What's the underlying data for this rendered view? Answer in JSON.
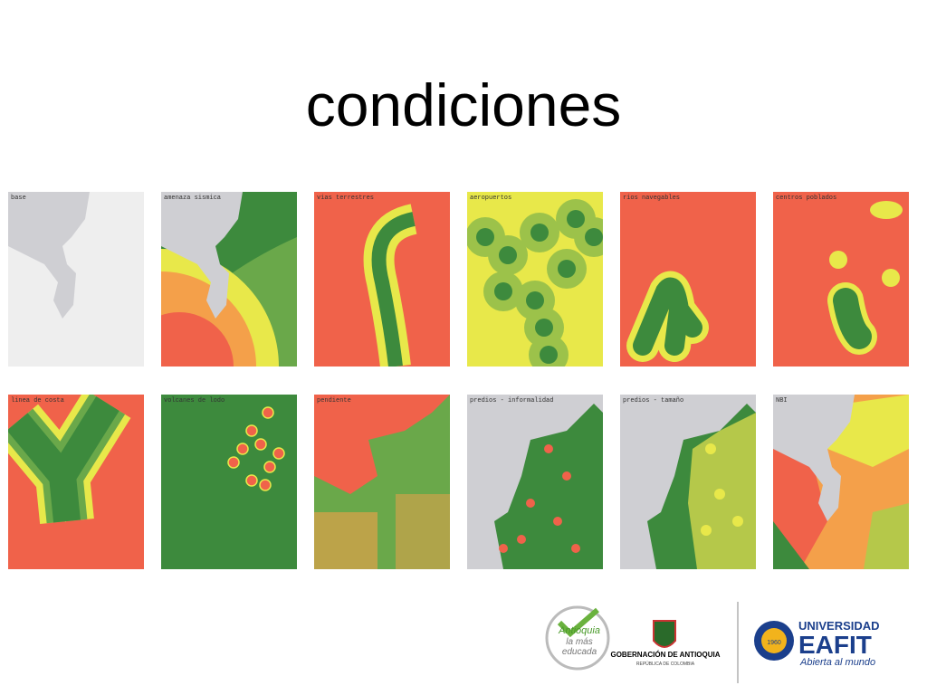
{
  "header": {
    "title": "condiciones"
  },
  "maps": [
    {
      "label": "base"
    },
    {
      "label": "amenaza sismica"
    },
    {
      "label": "vias terrestres"
    },
    {
      "label": "aeropuertos"
    },
    {
      "label": "rios navegables"
    },
    {
      "label": "centros poblados"
    },
    {
      "label": "linea de costa"
    },
    {
      "label": "volcanes de lodo"
    },
    {
      "label": "pendiente"
    },
    {
      "label": "predios - informalidad"
    },
    {
      "label": "predios - tamaño"
    },
    {
      "label": "NBI"
    }
  ],
  "logos": {
    "antioquia": [
      "Antioquia",
      "la más",
      "educada"
    ],
    "gobernacion": {
      "name": "GOBERNACIÓN DE ANTIOQUIA",
      "country": "REPÚBLICA DE COLOMBIA"
    },
    "eafit": {
      "top": "UNIVERSIDAD",
      "name": "EAFIT",
      "year": "1960",
      "motto": "Abierta al mundo"
    }
  }
}
